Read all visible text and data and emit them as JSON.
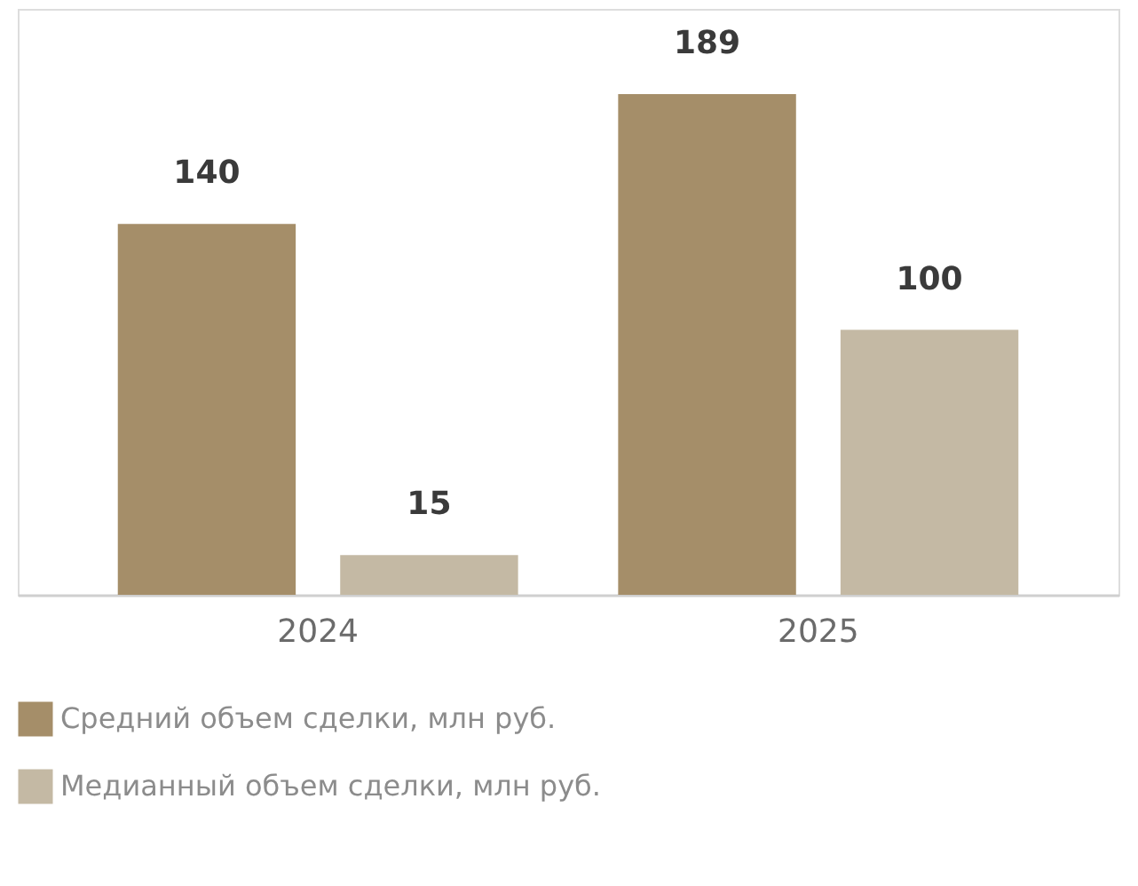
{
  "chart_data": {
    "type": "bar",
    "categories": [
      "2024",
      "2025"
    ],
    "series": [
      {
        "name": "Средний объем сделки, млн руб.",
        "color": "#a58e69",
        "values": [
          140,
          189
        ]
      },
      {
        "name": "Медианный объем сделки, млн руб.",
        "color": "#c4b9a4",
        "values": [
          15,
          100
        ]
      }
    ],
    "data_labels": true,
    "legend": "bottom",
    "grid": false
  }
}
